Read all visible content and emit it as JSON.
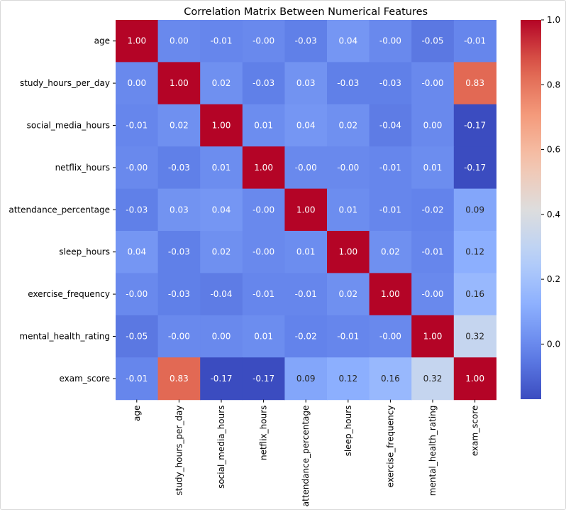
{
  "chart_data": {
    "type": "heatmap",
    "title": "Correlation Matrix Between Numerical Features",
    "xlabel": "",
    "ylabel": "",
    "colormap": "coolwarm",
    "vmin": -0.17,
    "vmax": 1.0,
    "labels": [
      "age",
      "study_hours_per_day",
      "social_media_hours",
      "netflix_hours",
      "attendance_percentage",
      "sleep_hours",
      "exercise_frequency",
      "mental_health_rating",
      "exam_score"
    ],
    "matrix": [
      [
        1.0,
        0.0,
        -0.01,
        -0.0,
        -0.03,
        0.04,
        -0.0,
        -0.05,
        -0.01
      ],
      [
        0.0,
        1.0,
        0.02,
        -0.03,
        0.03,
        -0.03,
        -0.03,
        -0.0,
        0.83
      ],
      [
        -0.01,
        0.02,
        1.0,
        0.01,
        0.04,
        0.02,
        -0.04,
        0.0,
        -0.17
      ],
      [
        -0.0,
        -0.03,
        0.01,
        1.0,
        -0.0,
        -0.0,
        -0.01,
        0.01,
        -0.17
      ],
      [
        -0.03,
        0.03,
        0.04,
        -0.0,
        1.0,
        0.01,
        -0.01,
        -0.02,
        0.09
      ],
      [
        0.04,
        -0.03,
        0.02,
        -0.0,
        0.01,
        1.0,
        0.02,
        -0.01,
        0.12
      ],
      [
        -0.0,
        -0.03,
        -0.04,
        -0.01,
        -0.01,
        0.02,
        1.0,
        -0.0,
        0.16
      ],
      [
        -0.05,
        -0.0,
        0.0,
        0.01,
        -0.02,
        -0.01,
        -0.0,
        1.0,
        0.32
      ],
      [
        -0.01,
        0.83,
        -0.17,
        -0.17,
        0.09,
        0.12,
        0.16,
        0.32,
        1.0
      ]
    ],
    "cell_text": [
      [
        "1.00",
        "0.00",
        "-0.01",
        "-0.00",
        "-0.03",
        "0.04",
        "-0.00",
        "-0.05",
        "-0.01"
      ],
      [
        "0.00",
        "1.00",
        "0.02",
        "-0.03",
        "0.03",
        "-0.03",
        "-0.03",
        "-0.00",
        "0.83"
      ],
      [
        "-0.01",
        "0.02",
        "1.00",
        "0.01",
        "0.04",
        "0.02",
        "-0.04",
        "0.00",
        "-0.17"
      ],
      [
        "-0.00",
        "-0.03",
        "0.01",
        "1.00",
        "-0.00",
        "-0.00",
        "-0.01",
        "0.01",
        "-0.17"
      ],
      [
        "-0.03",
        "0.03",
        "0.04",
        "-0.00",
        "1.00",
        "0.01",
        "-0.01",
        "-0.02",
        "0.09"
      ],
      [
        "0.04",
        "-0.03",
        "0.02",
        "-0.00",
        "0.01",
        "1.00",
        "0.02",
        "-0.01",
        "0.12"
      ],
      [
        "-0.00",
        "-0.03",
        "-0.04",
        "-0.01",
        "-0.01",
        "0.02",
        "1.00",
        "-0.00",
        "0.16"
      ],
      [
        "-0.05",
        "-0.00",
        "0.00",
        "0.01",
        "-0.02",
        "-0.01",
        "-0.00",
        "1.00",
        "0.32"
      ],
      [
        "-0.01",
        "0.83",
        "-0.17",
        "-0.17",
        "0.09",
        "0.12",
        "0.16",
        "0.32",
        "1.00"
      ]
    ],
    "colorbar": {
      "ticks": [
        0.0,
        0.2,
        0.4,
        0.6,
        0.8,
        1.0
      ],
      "tick_labels": [
        "0.0",
        "0.2",
        "0.4",
        "0.6",
        "0.8",
        "1.0"
      ],
      "placement": "right"
    }
  }
}
